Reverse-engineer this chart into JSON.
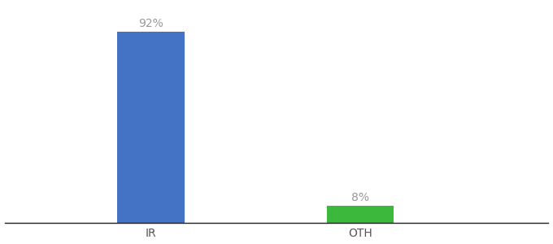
{
  "categories": [
    "IR",
    "OTH"
  ],
  "values": [
    92,
    8
  ],
  "bar_colors": [
    "#4472c4",
    "#3cb93c"
  ],
  "value_labels": [
    "92%",
    "8%"
  ],
  "background_color": "#ffffff",
  "ylim": [
    0,
    105
  ],
  "bar_width": 0.32,
  "label_fontsize": 10,
  "tick_fontsize": 10,
  "label_color": "#999999",
  "tick_color": "#555555",
  "x_positions": [
    1,
    2
  ],
  "xlim": [
    0.3,
    2.9
  ]
}
